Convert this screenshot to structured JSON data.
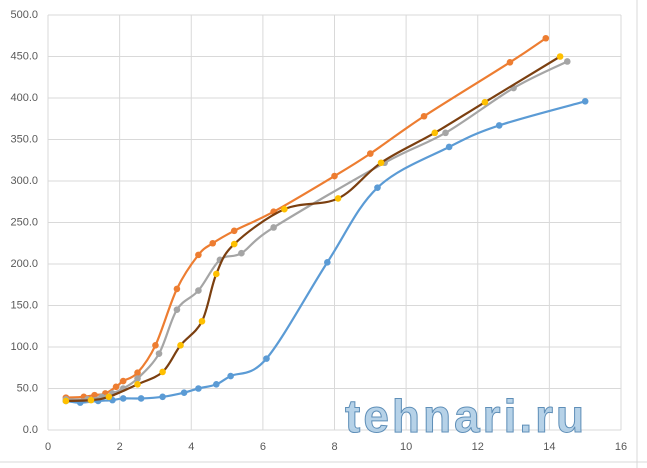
{
  "chart_data": {
    "type": "scatter",
    "smooth": true,
    "grid": true,
    "watermark": "tehnari.ru",
    "xlim": [
      0,
      16
    ],
    "xticks": [
      0,
      2,
      4,
      6,
      8,
      10,
      12,
      14,
      16
    ],
    "ylim": [
      0,
      500
    ],
    "yticks": [
      {
        "value": 0,
        "label": "0.0"
      },
      {
        "value": 50,
        "label": "50.0"
      },
      {
        "value": 100,
        "label": "100.0"
      },
      {
        "value": 150,
        "label": "150.0"
      },
      {
        "value": 200,
        "label": "200.0"
      },
      {
        "value": 250,
        "label": "250.0"
      },
      {
        "value": 300,
        "label": "300.0"
      },
      {
        "value": 350,
        "label": "350.0"
      },
      {
        "value": 400,
        "label": "400.0"
      },
      {
        "value": 450,
        "label": "450.0"
      },
      {
        "value": 500,
        "label": "500.0"
      }
    ],
    "series": [
      {
        "color": "#5b9bd5",
        "marker_color": "#5b9bd5",
        "x": [
          0.5,
          0.9,
          1.4,
          1.8,
          2.1,
          2.6,
          3.2,
          3.8,
          4.2,
          4.7,
          5.1,
          6.1,
          7.8,
          9.2,
          11.2,
          12.6,
          15.0
        ],
        "values": [
          35,
          33,
          35,
          36,
          38,
          38,
          40,
          45,
          50,
          55,
          65,
          86,
          202,
          292,
          341,
          367,
          396
        ]
      },
      {
        "color": "#ed7d31",
        "marker_color": "#ed7d31",
        "x": [
          0.5,
          1.0,
          1.3,
          1.6,
          1.9,
          2.1,
          2.5,
          3.0,
          3.6,
          4.2,
          4.6,
          5.2,
          6.3,
          8.0,
          9.0,
          10.5,
          12.9,
          13.9
        ],
        "values": [
          39,
          40,
          42,
          44,
          52,
          59,
          69,
          102,
          170,
          211,
          225,
          240,
          263,
          306,
          333,
          378,
          443,
          472
        ]
      },
      {
        "color": "#a5a5a5",
        "marker_color": "#a5a5a5",
        "x": [
          0.5,
          1.1,
          1.5,
          1.8,
          2.1,
          2.5,
          3.1,
          3.6,
          4.2,
          4.8,
          5.4,
          6.3,
          9.4,
          11.1,
          13.0,
          14.5
        ],
        "values": [
          37,
          37,
          40,
          44,
          50,
          62,
          92,
          145,
          168,
          205,
          213,
          244,
          322,
          358,
          412,
          444
        ]
      },
      {
        "color": "#7b3f10",
        "marker_color": "#ffc000",
        "x": [
          0.5,
          1.2,
          1.7,
          2.5,
          3.2,
          3.7,
          4.3,
          4.7,
          5.2,
          6.6,
          8.1,
          9.3,
          10.8,
          12.2,
          14.3
        ],
        "values": [
          35,
          36,
          40,
          55,
          70,
          102,
          131,
          188,
          224,
          266,
          279,
          322,
          358,
          395,
          450
        ]
      }
    ]
  }
}
